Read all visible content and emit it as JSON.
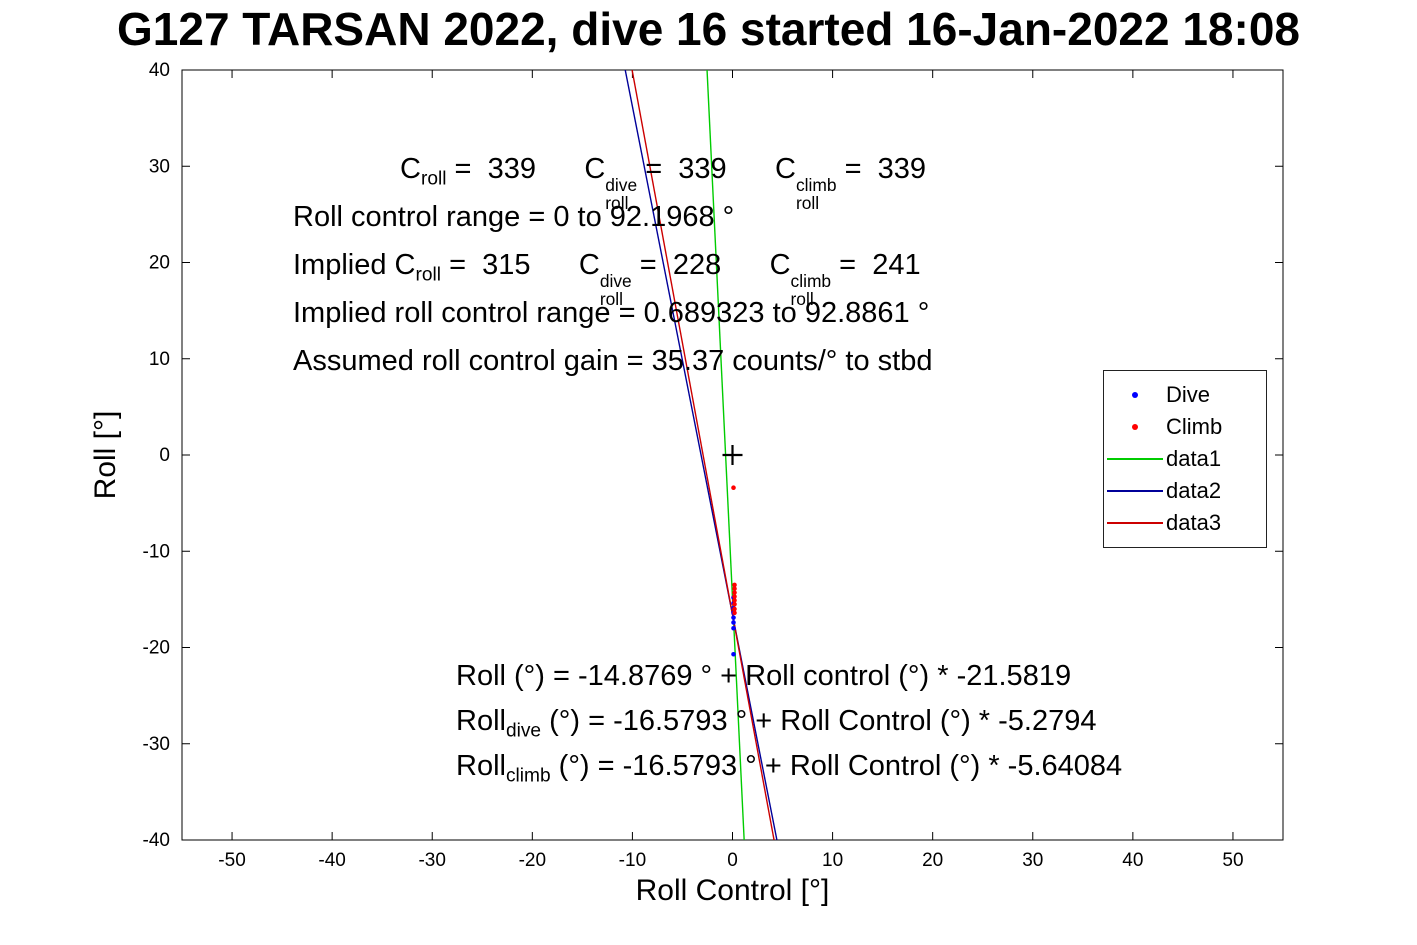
{
  "title": "G127 TARSAN 2022, dive 16 started 16-Jan-2022 18:08",
  "chart_data": {
    "type": "scatter",
    "title": "G127 TARSAN 2022, dive 16 started 16-Jan-2022 18:08",
    "xlabel": "Roll Control [°]",
    "ylabel": "Roll [°]",
    "xlim": [
      -55,
      55
    ],
    "ylim": [
      -40,
      40
    ],
    "xticks": [
      -50,
      -40,
      -30,
      -20,
      -10,
      0,
      10,
      20,
      30,
      40,
      50
    ],
    "yticks": [
      -40,
      -30,
      -20,
      -10,
      0,
      10,
      20,
      30,
      40
    ],
    "grid": false,
    "reference_marker": {
      "x": 0,
      "y": 0,
      "symbol": "+",
      "color": "#000000"
    },
    "series": [
      {
        "name": "Dive",
        "type": "scatter",
        "color": "#0000ff",
        "points": [
          [
            0.1,
            -14.8
          ],
          [
            0.1,
            -15.4
          ],
          [
            0.1,
            -15.9
          ],
          [
            0.1,
            -16.4
          ],
          [
            0.1,
            -16.9
          ],
          [
            0.1,
            -17.4
          ],
          [
            0.1,
            -18.0
          ],
          [
            0.1,
            -20.7
          ]
        ]
      },
      {
        "name": "Climb",
        "type": "scatter",
        "color": "#ff0000",
        "points": [
          [
            0.1,
            -3.4
          ],
          [
            0.2,
            -13.5
          ],
          [
            0.2,
            -13.9
          ],
          [
            0.2,
            -14.3
          ],
          [
            0.2,
            -14.7
          ],
          [
            0.2,
            -15.1
          ],
          [
            0.2,
            -15.5
          ],
          [
            0.2,
            -16.0
          ],
          [
            0.2,
            -16.4
          ]
        ]
      },
      {
        "name": "data1",
        "type": "line",
        "color": "#00cc00",
        "intercept": -14.8769,
        "slope": -21.5819
      },
      {
        "name": "data2",
        "type": "line",
        "color": "#000099",
        "intercept": -16.5793,
        "slope": -5.2794
      },
      {
        "name": "data3",
        "type": "line",
        "color": "#cc0000",
        "intercept": -16.5793,
        "slope": -5.64084
      }
    ],
    "legend": {
      "position": "northeast",
      "entries": [
        {
          "label": "Dive",
          "sample": "dot",
          "color": "#0000ff"
        },
        {
          "label": "Climb",
          "sample": "dot",
          "color": "#ff0000"
        },
        {
          "label": "data1",
          "sample": "line",
          "color": "#00cc00"
        },
        {
          "label": "data2",
          "sample": "line",
          "color": "#000099"
        },
        {
          "label": "data3",
          "sample": "line",
          "color": "#cc0000"
        }
      ]
    }
  },
  "annotations": {
    "top": [
      {
        "segments": [
          {
            "t": "C"
          },
          {
            "sub": "roll"
          },
          {
            "t": " =  339      "
          },
          {
            "t": "C"
          },
          {
            "stack": [
              "dive",
              "roll"
            ]
          },
          {
            "t": " =  339      "
          },
          {
            "t": "C"
          },
          {
            "stack": [
              "climb",
              "roll"
            ]
          },
          {
            "t": " =  339"
          }
        ]
      },
      {
        "segments": [
          {
            "t": "Roll control range = 0 to 92.1968 °"
          }
        ]
      },
      {
        "segments": [
          {
            "t": "Implied C"
          },
          {
            "sub": "roll"
          },
          {
            "t": " =  315      "
          },
          {
            "t": "C"
          },
          {
            "stack": [
              "dive",
              "roll"
            ]
          },
          {
            "t": " =  228      "
          },
          {
            "t": "C"
          },
          {
            "stack": [
              "climb",
              "roll"
            ]
          },
          {
            "t": " =  241"
          }
        ]
      },
      {
        "segments": [
          {
            "t": "Implied roll control range = 0.689323 to 92.8861 °"
          }
        ]
      },
      {
        "segments": [
          {
            "t": "Assumed roll control gain = 35.37 counts/° to stbd"
          }
        ]
      }
    ],
    "bottom": [
      {
        "segments": [
          {
            "t": "Roll (°) = -14.8769 ° + Roll control (°) * -21.5819"
          }
        ]
      },
      {
        "segments": [
          {
            "t": "Roll"
          },
          {
            "sub": "dive"
          },
          {
            "t": " (°) = -16.5793 ° + Roll Control (°) * -5.2794"
          }
        ]
      },
      {
        "segments": [
          {
            "t": "Roll"
          },
          {
            "sub": "climb"
          },
          {
            "t": " (°) = -16.5793 ° + Roll Control (°) * -5.64084"
          }
        ]
      }
    ]
  }
}
